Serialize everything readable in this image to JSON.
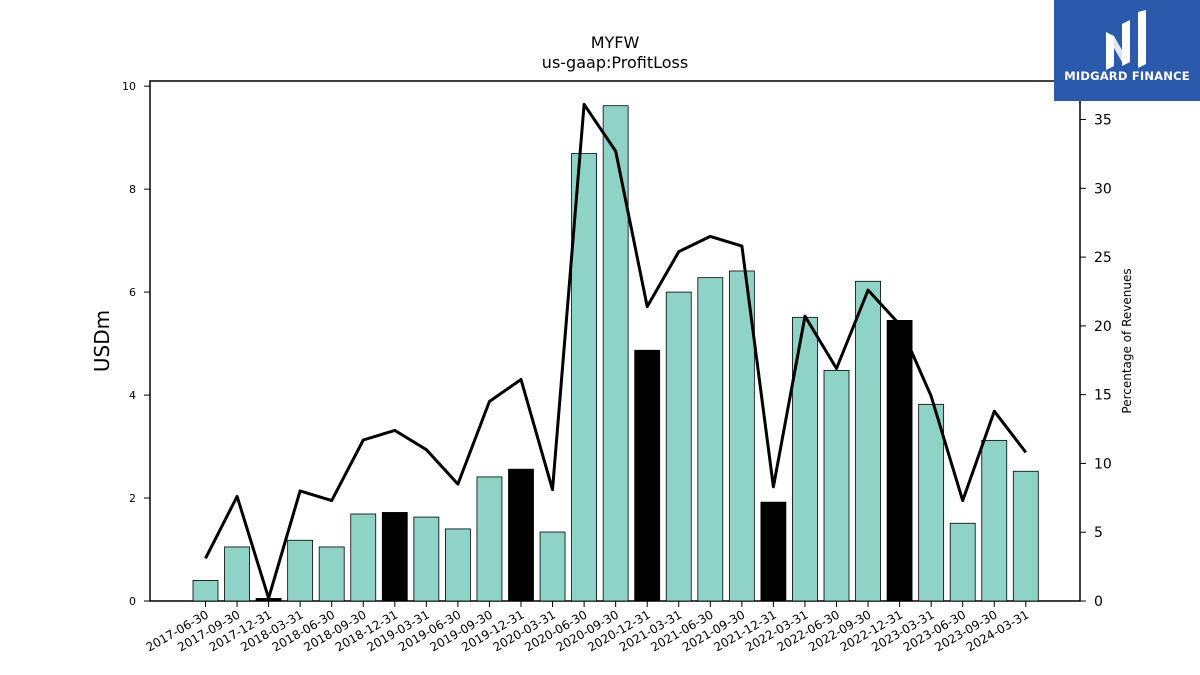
{
  "chart_data": {
    "type": "bar",
    "title": "MYFW",
    "subtitle": "us-gaap:ProfitLoss",
    "ylabel": "USDm",
    "y2label": "Percentage of Revenues",
    "ylim": [
      0,
      10.1
    ],
    "y2lim": [
      0,
      37.8
    ],
    "yticks": [
      0,
      2,
      4,
      6,
      8,
      10
    ],
    "y2ticks": [
      0,
      5,
      10,
      15,
      20,
      25,
      30,
      35
    ],
    "categories": [
      "2017-06-30",
      "2017-09-30",
      "2017-12-31",
      "2018-03-31",
      "2018-06-30",
      "2018-09-30",
      "2018-12-31",
      "2019-03-31",
      "2019-06-30",
      "2019-09-30",
      "2019-12-31",
      "2020-03-31",
      "2020-06-30",
      "2020-09-30",
      "2020-12-31",
      "2021-03-31",
      "2021-06-30",
      "2021-09-30",
      "2021-12-31",
      "2022-03-31",
      "2022-06-30",
      "2022-09-30",
      "2022-12-31",
      "2023-03-31",
      "2023-06-30",
      "2023-09-30",
      "2024-03-31"
    ],
    "values": [
      0.4,
      1.05,
      0.05,
      1.18,
      1.05,
      1.69,
      1.72,
      1.63,
      1.4,
      2.41,
      2.56,
      1.34,
      8.69,
      9.62,
      4.87,
      6.0,
      6.28,
      6.41,
      1.92,
      5.51,
      4.48,
      6.21,
      5.45,
      3.82,
      1.51,
      3.12,
      2.52
    ],
    "highlighted": [
      false,
      false,
      true,
      false,
      false,
      false,
      true,
      false,
      false,
      false,
      true,
      false,
      false,
      false,
      true,
      false,
      false,
      false,
      true,
      false,
      false,
      false,
      true,
      false,
      false,
      false,
      false
    ],
    "line_series": [
      3.1,
      7.6,
      0.2,
      8.0,
      7.3,
      11.7,
      12.4,
      11.0,
      8.5,
      14.5,
      16.1,
      8.1,
      36.1,
      32.7,
      21.4,
      25.4,
      26.5,
      25.8,
      8.3,
      20.7,
      16.9,
      22.6,
      20.1,
      14.9,
      7.3,
      13.8,
      10.8
    ],
    "colors": {
      "bar": "#8fd3c7",
      "highlight": "#000000",
      "line": "#000000"
    },
    "grid": false,
    "legend": "none"
  },
  "logo": {
    "text": "MIDGARD FINANCE",
    "bg": "#2b5aad"
  }
}
